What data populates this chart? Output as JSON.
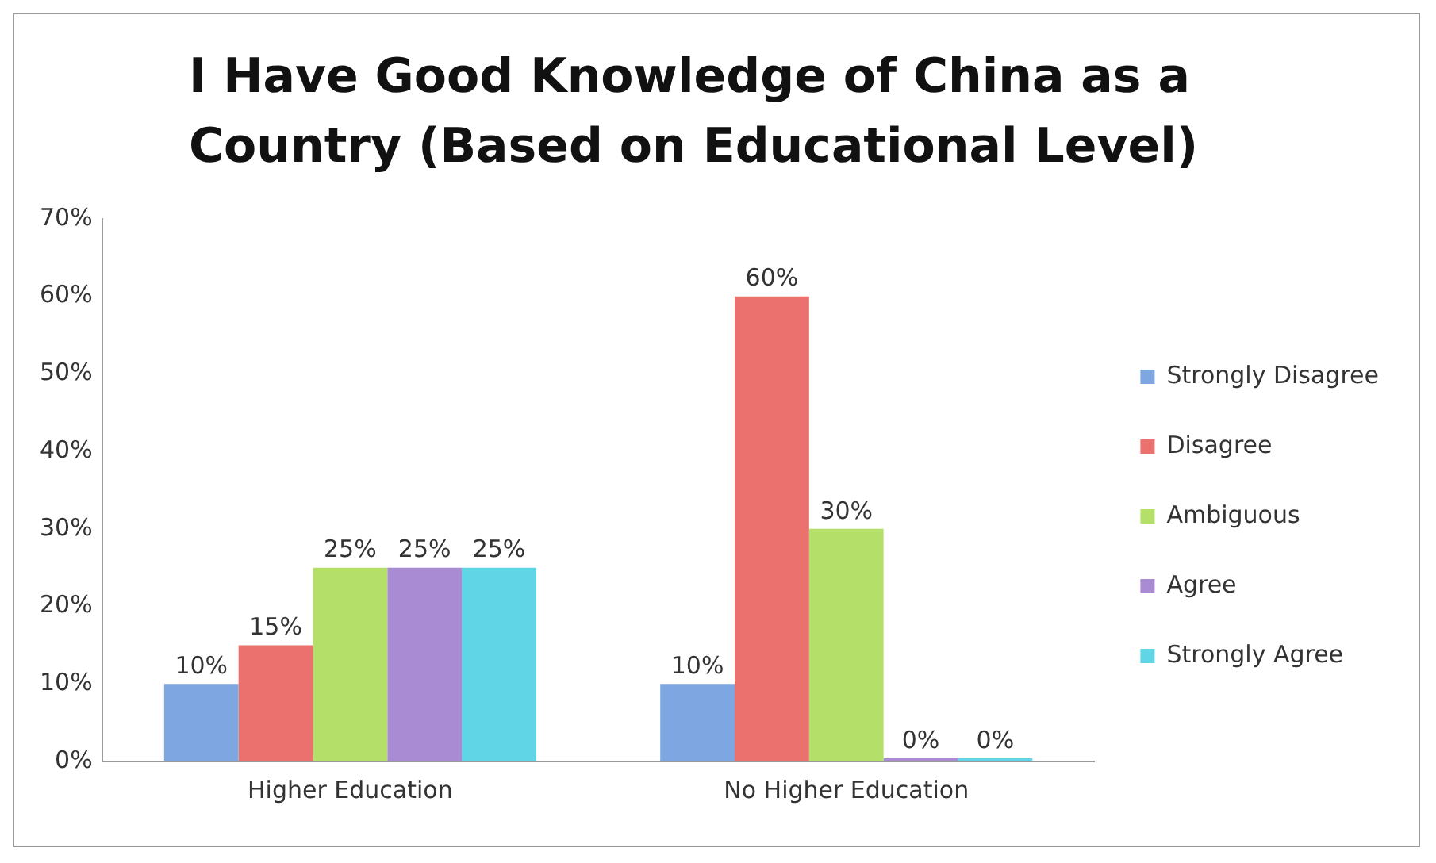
{
  "chart_data": {
    "type": "bar",
    "title": "I Have Good Knowledge of China as a Country (Based on Educational Level)",
    "categories": [
      "Higher Education",
      "No Higher Education"
    ],
    "series": [
      {
        "name": "Strongly Disagree",
        "color": "#7ea6e0",
        "values": [
          10,
          10
        ],
        "value_labels": [
          "10%",
          "10%"
        ]
      },
      {
        "name": "Disagree",
        "color": "#ea716d",
        "values": [
          15,
          60
        ],
        "value_labels": [
          "15%",
          "60%"
        ]
      },
      {
        "name": "Ambiguous",
        "color": "#b4e06a",
        "values": [
          25,
          30
        ],
        "value_labels": [
          "25%",
          "30%"
        ]
      },
      {
        "name": "Agree",
        "color": "#a88bd2",
        "values": [
          25,
          0
        ],
        "value_labels": [
          "25%",
          "0%"
        ]
      },
      {
        "name": "Strongly Agree",
        "color": "#5fd5e5",
        "values": [
          25,
          0
        ],
        "value_labels": [
          "25%",
          "0%"
        ]
      }
    ],
    "ylim": [
      0,
      70
    ],
    "yticks": [
      {
        "value": 0,
        "label": "0%"
      },
      {
        "value": 10,
        "label": "10%"
      },
      {
        "value": 20,
        "label": "20%"
      },
      {
        "value": 30,
        "label": "30%"
      },
      {
        "value": 40,
        "label": "40%"
      },
      {
        "value": 50,
        "label": "50%"
      },
      {
        "value": 60,
        "label": "60%"
      },
      {
        "value": 70,
        "label": "70%"
      }
    ],
    "grid": false,
    "legend": "right"
  }
}
